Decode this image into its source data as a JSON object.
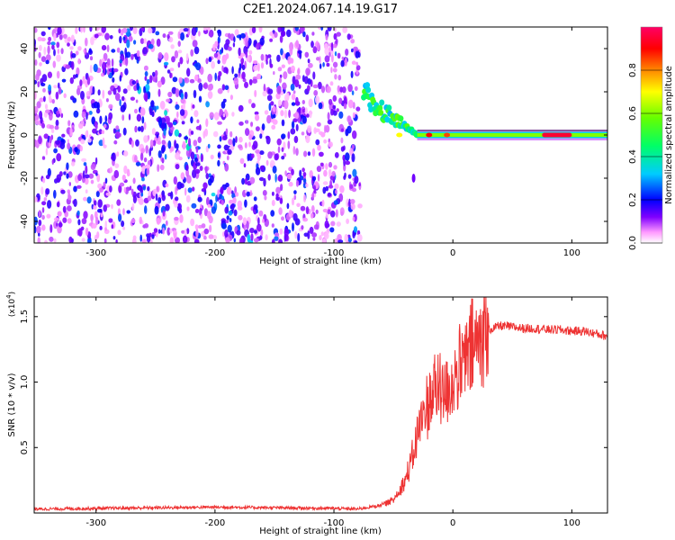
{
  "title": "C2E1.2024.067.14.19.G17",
  "chart_data": [
    {
      "type": "heatmap",
      "xlabel": "Height of straight line (km)",
      "ylabel": "Frequency (Hz)",
      "xlim": [
        -352,
        130
      ],
      "ylim": [
        -50,
        50
      ],
      "xticks": [
        -300,
        -200,
        -100,
        0,
        100
      ],
      "yticks": [
        -40,
        -20,
        0,
        20,
        40
      ],
      "colorbar": {
        "label": "Normalized spectral amplitude",
        "range": [
          0,
          1
        ],
        "ticks": [
          0.0,
          0.2,
          0.4,
          0.6,
          0.8
        ],
        "colors": [
          "#ffffff",
          "#ff99ff",
          "#8000ff",
          "#0000ff",
          "#00ccff",
          "#00ff66",
          "#66ff00",
          "#ffff00",
          "#ff8800",
          "#ff0000",
          "#ff0066"
        ]
      },
      "features": [
        {
          "region": "noise",
          "x_range": [
            -352,
            -78
          ],
          "y_range": [
            -50,
            50
          ],
          "amplitude": 0.1
        },
        {
          "region": "diagonal-band",
          "x_start": -265,
          "y_start": 28,
          "x_end": -180,
          "y_end": -45,
          "amplitude": 0.15
        },
        {
          "region": "converging-signal",
          "x_start": -75,
          "y_start": 18,
          "x_end": -30,
          "y_end": 0,
          "amplitude": 0.5
        },
        {
          "region": "carrier-line",
          "x_range": [
            -30,
            130
          ],
          "y": 0,
          "amplitude": 0.6
        },
        {
          "region": "peak",
          "x_range": [
            75,
            100
          ],
          "y": 0,
          "amplitude": 0.95
        }
      ]
    },
    {
      "type": "line",
      "xlabel": "Height of straight line (km)",
      "ylabel": "SNR (10 * v/v)",
      "y_multiplier": "(x10",
      "y_multiplier_exp": "4",
      "y_multiplier_close": ")",
      "xlim": [
        -352,
        130
      ],
      "ylim": [
        0,
        1.65
      ],
      "xticks": [
        -300,
        -200,
        -100,
        0,
        100
      ],
      "yticks": [
        0.5,
        1.0,
        1.5
      ],
      "series": [
        {
          "color": "#ee3333",
          "x": [
            -352,
            -300,
            -250,
            -200,
            -150,
            -100,
            -80,
            -60,
            -50,
            -45,
            -40,
            -35,
            -30,
            -25,
            -20,
            -15,
            -12,
            -10,
            -5,
            0,
            10,
            20,
            30,
            40,
            50,
            60,
            70,
            80,
            90,
            100,
            110,
            120,
            130
          ],
          "y": [
            0.03,
            0.035,
            0.04,
            0.045,
            0.04,
            0.035,
            0.03,
            0.06,
            0.1,
            0.18,
            0.25,
            0.38,
            0.6,
            0.75,
            0.85,
            0.95,
            1.05,
            0.9,
            0.95,
            1.0,
            1.15,
            1.3,
            1.4,
            1.43,
            1.42,
            1.41,
            1.41,
            1.4,
            1.4,
            1.39,
            1.39,
            1.37,
            1.35
          ]
        }
      ]
    }
  ]
}
